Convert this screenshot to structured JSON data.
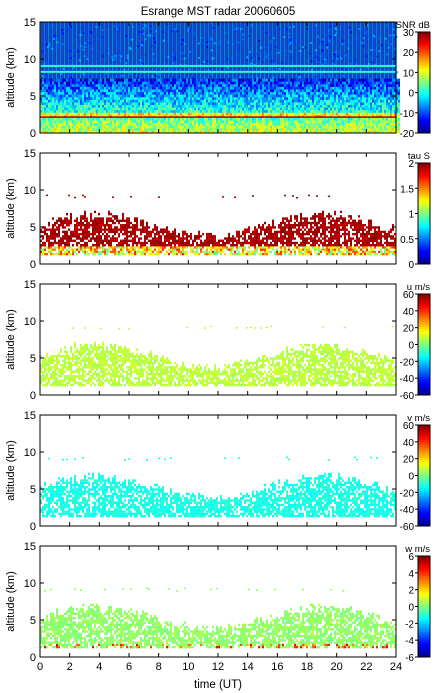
{
  "title": "Esrange MST radar 20060605",
  "xlabel": "time (UT)",
  "x_ticks": [
    "0",
    "2",
    "4",
    "6",
    "8",
    "10",
    "12",
    "14",
    "16",
    "18",
    "20",
    "22",
    "24"
  ],
  "colors": {
    "jet": [
      "#00008f",
      "#0000ff",
      "#007fff",
      "#00ffff",
      "#7fff7f",
      "#ffff00",
      "#ff7f00",
      "#ff0000",
      "#7f0000"
    ],
    "background_plot1": "#1a3fc8"
  },
  "chart_data": [
    {
      "type": "heatmap",
      "quantity": "SNR",
      "colorbar_label": "SNR dB",
      "colorbar_range": [
        -20,
        30
      ],
      "colorbar_ticks": [
        "30",
        "20",
        "10",
        "0",
        "-10",
        "-20"
      ],
      "ylabel": "altitude (km)",
      "y_ticks": [
        "0",
        "5",
        "10",
        "15"
      ],
      "xlim": [
        0,
        24
      ],
      "ylim": [
        0,
        15
      ],
      "notes": "strong echoes (yellow-red) 0-6 km, noise (blue) above ~7 km"
    },
    {
      "type": "heatmap",
      "quantity": "tau",
      "colorbar_label": "tau S",
      "colorbar_range": [
        0,
        2
      ],
      "colorbar_ticks": [
        "2",
        "1.5",
        "1",
        "0.5",
        "0"
      ],
      "ylabel": "altitude (km)",
      "y_ticks": [
        "0",
        "5",
        "10",
        "15"
      ],
      "xlim": [
        0,
        24
      ],
      "ylim": [
        0,
        15
      ],
      "notes": "dark red (~2 s) values between ~1.5 and ~6 km; sparse points near 9 km"
    },
    {
      "type": "heatmap",
      "quantity": "u",
      "colorbar_label": "u m/s",
      "colorbar_range": [
        -60,
        60
      ],
      "colorbar_ticks": [
        "60",
        "40",
        "20",
        "0",
        "-20",
        "-40",
        "-60"
      ],
      "ylabel": "altitude (km)",
      "y_ticks": [
        "0",
        "5",
        "10",
        "15"
      ],
      "xlim": [
        0,
        24
      ],
      "ylim": [
        0,
        15
      ],
      "notes": "light green (~0-10 m/s) between ~1.5 and ~6 km"
    },
    {
      "type": "heatmap",
      "quantity": "v",
      "colorbar_label": "v m/s",
      "colorbar_range": [
        -60,
        60
      ],
      "colorbar_ticks": [
        "60",
        "40",
        "20",
        "0",
        "-20",
        "-40",
        "-60"
      ],
      "ylabel": "altitude (km)",
      "y_ticks": [
        "0",
        "5",
        "10",
        "15"
      ],
      "xlim": [
        0,
        24
      ],
      "ylim": [
        0,
        15
      ],
      "notes": "cyan (~-10 m/s) between ~1.5 and ~6 km"
    },
    {
      "type": "heatmap",
      "quantity": "w",
      "colorbar_label": "w m/s",
      "colorbar_range": [
        -6,
        6
      ],
      "colorbar_ticks": [
        "6",
        "4",
        "2",
        "0",
        "-2",
        "-4",
        "-6"
      ],
      "ylabel": "altitude (km)",
      "y_ticks": [
        "0",
        "5",
        "10",
        "15"
      ],
      "xlim": [
        0,
        24
      ],
      "ylim": [
        0,
        15
      ],
      "notes": "light green (~0 m/s) between ~1 and ~6.5 km, sparse near 9 km"
    }
  ]
}
